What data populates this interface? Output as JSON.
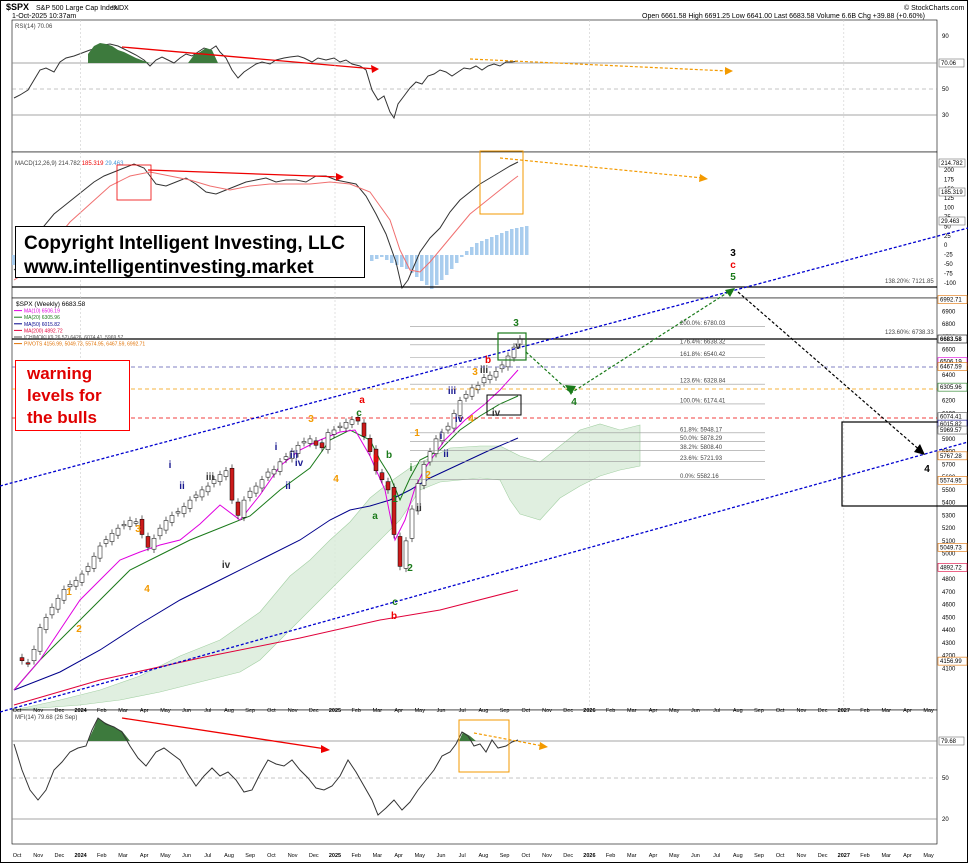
{
  "header": {
    "ticker": "$SPX",
    "name": "S&P 500 Large Cap Index",
    "exchange": "INDX",
    "date": "1-Oct-2025 10:37am",
    "ohlc": "Open 6661.58  High 6691.25  Low 6641.00  Last 6683.58  Volume 6.6B  Chg +39.88 (+0.60%)",
    "credit": "© StockCharts.com"
  },
  "rsi": {
    "label": "RSI(14) 70.06",
    "value": "70.06",
    "ticks": [
      "90",
      "70",
      "50",
      "30"
    ]
  },
  "macd": {
    "label": "MACD(12,26,9) 214.782",
    "sig": "185.319",
    "hist": "29.463",
    "ticks": [
      "200",
      "175",
      "150",
      "125",
      "100",
      "75",
      "50",
      "25",
      "0",
      "-25",
      "-50",
      "-75",
      "-100"
    ],
    "values": [
      "214.782",
      "185.319",
      "29.463"
    ]
  },
  "price": {
    "legend": [
      {
        "text": "$SPX (Weekly) 6683.58",
        "color": "#000000"
      },
      {
        "text": "MA(10) 6506.19",
        "color": "#e000e0"
      },
      {
        "text": "MA(20) 6305.96",
        "color": "#1a7a1a"
      },
      {
        "text": "MA(50) 6015.82",
        "color": "#00008b"
      },
      {
        "text": "MA(200) 4892.72",
        "color": "#e0003a"
      },
      {
        "text": "ICHIMOKU(9,26,52) 6426, 6074.41, 5969.57",
        "color": "#555555"
      },
      {
        "text": "PIVOTS 4156.99, 5049.73, 5574.95, 6467.59, 6992.71",
        "color": "#e07000"
      }
    ],
    "ticks": [
      "6900",
      "6800",
      "6700",
      "6600",
      "6500",
      "6400",
      "6300",
      "6200",
      "6100",
      "6000",
      "5900",
      "5800",
      "5700",
      "5600",
      "5500",
      "5400",
      "5300",
      "5200",
      "5100",
      "5000",
      "4900",
      "4800",
      "4700",
      "4600",
      "4500",
      "4400",
      "4300",
      "4200",
      "4100"
    ],
    "badges": [
      "6992.71",
      "6683.58",
      "6506.19",
      "6467.59",
      "6305.96",
      "6074.41",
      "6015.82",
      "5969.57",
      "5767.28",
      "5574.95",
      "5049.73",
      "4892.72",
      "4156.99"
    ],
    "fib": [
      {
        "label": "200.0%: 6780.03"
      },
      {
        "label": "176.4%: 6638.32"
      },
      {
        "label": "161.8%: 6540.42"
      },
      {
        "label": "123.6%: 6328.84"
      },
      {
        "label": "100.0%: 6174.41"
      },
      {
        "label": "61.8%: 5948.17"
      },
      {
        "label": "50.0%: 5878.29"
      },
      {
        "label": "38.2%: 5808.40"
      },
      {
        "label": "23.6%: 5721.93"
      },
      {
        "label": "0.0%: 5582.16"
      }
    ],
    "ext1": "138.20%: 7121.85",
    "ext2": "123.60%: 6738.33"
  },
  "waves": [
    {
      "t": "1"
    },
    {
      "t": "2"
    },
    {
      "t": "3"
    },
    {
      "t": "4"
    },
    {
      "t": "i"
    },
    {
      "t": "ii"
    },
    {
      "t": "iii"
    },
    {
      "t": "iv"
    },
    {
      "t": "i"
    },
    {
      "t": "ii"
    },
    {
      "t": "iii"
    },
    {
      "t": "iv"
    },
    {
      "t": "3"
    },
    {
      "t": "a"
    },
    {
      "t": "c"
    },
    {
      "t": "4"
    },
    {
      "t": "b"
    },
    {
      "t": "a"
    },
    {
      "t": "b"
    },
    {
      "t": "c"
    },
    {
      "t": "b"
    },
    {
      "t": "1"
    },
    {
      "t": "2"
    },
    {
      "t": "i"
    },
    {
      "t": "ii"
    },
    {
      "t": "1"
    },
    {
      "t": "2"
    },
    {
      "t": "i"
    },
    {
      "t": "ii"
    },
    {
      "t": "iii"
    },
    {
      "t": "iv"
    },
    {
      "t": "3"
    },
    {
      "t": "4"
    },
    {
      "t": "iii"
    },
    {
      "t": "iv"
    },
    {
      "t": "v"
    },
    {
      "t": "b"
    },
    {
      "t": "3"
    },
    {
      "t": "4"
    },
    {
      "t": "3"
    },
    {
      "t": "c"
    },
    {
      "t": "5"
    },
    {
      "t": "4"
    }
  ],
  "mfi": {
    "label": "MFI(14) 79.68 (26 Sep)",
    "value": "79.68",
    "ticks": [
      "80",
      "50",
      "20"
    ]
  },
  "months": [
    "Oct",
    "Nov",
    "Dec",
    "2024",
    "Feb",
    "Mar",
    "Apr",
    "May",
    "Jun",
    "Jul",
    "Aug",
    "Sep",
    "Oct",
    "Nov",
    "Dec",
    "2025",
    "Feb",
    "Mar",
    "Apr",
    "May",
    "Jun",
    "Jul",
    "Aug",
    "Sep",
    "Oct",
    "Nov",
    "Dec",
    "2026",
    "Feb",
    "Mar",
    "Apr",
    "May",
    "Jun",
    "Jul",
    "Aug",
    "Sep",
    "Oct",
    "Nov",
    "Dec",
    "2027",
    "Feb",
    "Mar",
    "Apr",
    "May"
  ],
  "copyright": {
    "line1": "Copyright Intelligent Investing, LLC",
    "line2": "www.intelligentinvesting.market"
  },
  "warning": {
    "line1": "warning",
    "line2": "levels for",
    "line3": "the bulls"
  },
  "chart_data": {
    "type": "candlestick",
    "title": "$SPX S&P 500 Large Cap Index (Weekly)",
    "x_start": "Oct 2023",
    "x_end": "May 2027",
    "ylim": [
      4100,
      7150
    ],
    "price_path": [
      [
        "Oct 2023",
        4200
      ],
      [
        "Nov 2023",
        4400
      ],
      [
        "Dec 2023",
        4750
      ],
      [
        "Jan 2024",
        4800
      ],
      [
        "Feb 2024",
        5050
      ],
      [
        "Mar 2024",
        5250
      ],
      [
        "Apr 2024",
        5000
      ],
      [
        "May 2024",
        5300
      ],
      [
        "Jun 2024",
        5450
      ],
      [
        "Jul 2024",
        5650
      ],
      [
        "Aug 2024",
        5200
      ],
      [
        "Sep 2024",
        5650
      ],
      [
        "Oct 2024",
        5850
      ],
      [
        "Nov 2024",
        6000
      ],
      [
        "Dec 2024",
        6050
      ],
      [
        "Jan 2025",
        5900
      ],
      [
        "Feb 2025",
        6150
      ],
      [
        "Mar 2025",
        5600
      ],
      [
        "Apr 2025",
        4850
      ],
      [
        "May 2025",
        5700
      ],
      [
        "Jun 2025",
        6000
      ],
      [
        "Jul 2025",
        6300
      ],
      [
        "Aug 2025",
        6450
      ],
      [
        "Sep 2025",
        6650
      ],
      [
        "Oct 2025",
        6683.58
      ]
    ],
    "fibonacci_levels": [
      6780.03,
      6638.32,
      6540.42,
      6328.84,
      6174.41,
      5948.17,
      5878.29,
      5808.4,
      5721.93,
      5582.16
    ],
    "extensions": [
      7121.85,
      6738.33
    ],
    "projected_path": [
      [
        "Oct 2025",
        6683.58
      ],
      [
        "Nov 2025",
        6300
      ],
      [
        "Jul 2026",
        7121.85
      ],
      [
        "Feb 2027",
        5850
      ]
    ],
    "rsi": 70.06,
    "macd": 214.782,
    "macd_signal": 185.319,
    "macd_histogram": 29.463,
    "mfi": 79.68
  }
}
